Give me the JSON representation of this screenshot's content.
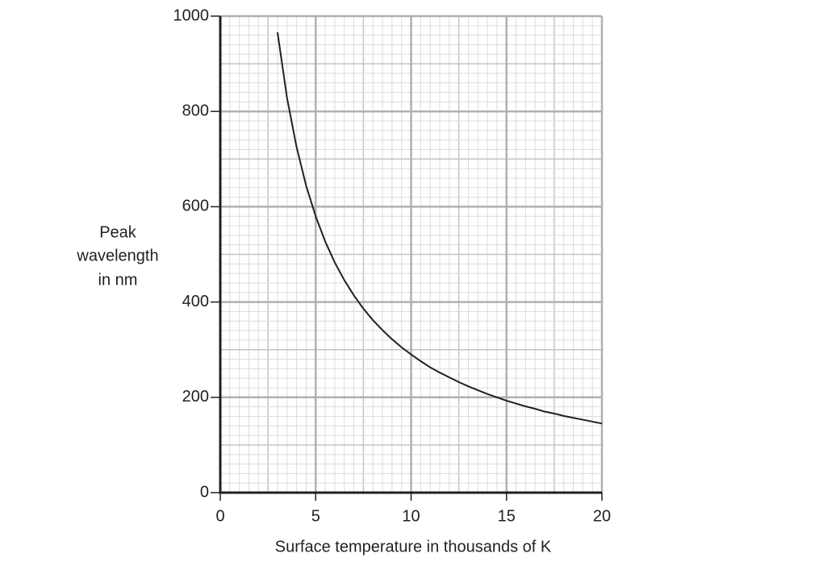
{
  "chart_data": {
    "type": "line",
    "xlabel": "Surface temperature in thousands of K",
    "ylabel": [
      "Peak",
      "wavelength",
      "in nm"
    ],
    "xlim": [
      0,
      20
    ],
    "xticks": [
      0,
      5,
      10,
      15,
      20
    ],
    "ylim": [
      0,
      1000
    ],
    "yticks": [
      0,
      200,
      400,
      600,
      800,
      1000
    ],
    "grid": true,
    "x": [
      3,
      3.5,
      4,
      4.5,
      5,
      5.5,
      6,
      6.5,
      7,
      7.5,
      8,
      8.5,
      9,
      9.5,
      10,
      10.5,
      11,
      11.5,
      12,
      12.5,
      13,
      13.5,
      14,
      14.5,
      15,
      15.5,
      16,
      16.5,
      17,
      17.5,
      18,
      18.5,
      19,
      19.5,
      20
    ],
    "series": [
      {
        "color": "#231f20",
        "values": [
          966,
          828,
          725,
          644,
          580,
          527,
          483,
          446,
          414,
          386,
          362,
          341,
          322,
          305,
          290,
          276,
          263,
          252,
          242,
          232,
          223,
          215,
          207,
          200,
          193,
          187,
          181,
          176,
          170,
          166,
          161,
          157,
          153,
          149,
          145
        ]
      }
    ]
  }
}
